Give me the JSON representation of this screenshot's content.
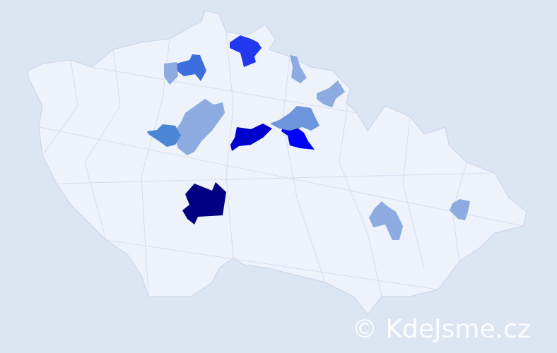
{
  "map": {
    "background": "#dce5f2",
    "land_color": "#eef2fa",
    "border_color": "#c9d3ea",
    "regions": [
      {
        "name": "south-bohemia-dark",
        "color": "#000080"
      },
      {
        "name": "central-dark-blue",
        "color": "#0000cc"
      },
      {
        "name": "east-bright-blue",
        "color": "#0000ff"
      },
      {
        "name": "north-blue",
        "color": "#2238ee"
      },
      {
        "name": "northwest-blue",
        "color": "#3d6ede"
      },
      {
        "name": "west-central-blue",
        "color": "#4a86d4"
      },
      {
        "name": "east-medium",
        "color": "#6d95db"
      },
      {
        "name": "light-region",
        "color": "#8dabe0"
      }
    ]
  },
  "watermark": "© KdeJsme.cz"
}
